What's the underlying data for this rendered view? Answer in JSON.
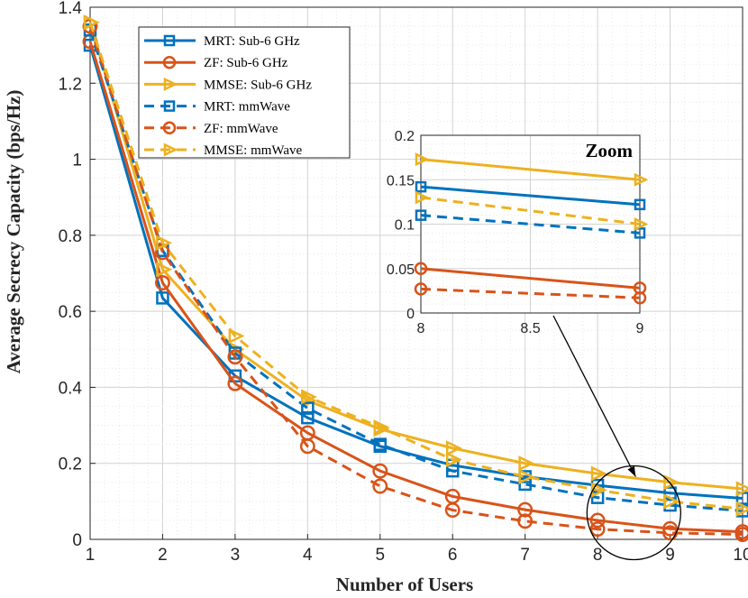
{
  "chart_data": {
    "type": "line",
    "xlabel": "Number of Users",
    "ylabel": "Average Secrecy Capacity (bps/Hz)",
    "xlim": [
      1,
      10
    ],
    "ylim": [
      0,
      1.4
    ],
    "xticks": [
      "1",
      "2",
      "3",
      "4",
      "5",
      "6",
      "7",
      "8",
      "9",
      "10"
    ],
    "yticks": [
      "0",
      "0.2",
      "0.4",
      "0.6",
      "0.8",
      "1",
      "1.2",
      "1.4"
    ],
    "grid": true,
    "legend_position": "top-left",
    "x": [
      1,
      2,
      3,
      4,
      5,
      6,
      7,
      8,
      9,
      10
    ],
    "series": [
      {
        "name": "MRT: Sub-6 GHz",
        "color": "#0072BD",
        "dash": "solid",
        "marker": "square",
        "values": [
          1.3,
          0.635,
          0.43,
          0.32,
          0.245,
          0.195,
          0.165,
          0.142,
          0.122,
          0.108
        ]
      },
      {
        "name": "ZF: Sub-6 GHz",
        "color": "#D95319",
        "dash": "solid",
        "marker": "circle",
        "values": [
          1.31,
          0.675,
          0.41,
          0.28,
          0.18,
          0.113,
          0.078,
          0.05,
          0.028,
          0.02
        ]
      },
      {
        "name": "MMSE: Sub-6 GHz",
        "color": "#EDB120",
        "dash": "solid",
        "marker": "triangle-right",
        "values": [
          1.36,
          0.71,
          0.5,
          0.365,
          0.29,
          0.24,
          0.2,
          0.173,
          0.15,
          0.133
        ]
      },
      {
        "name": "MRT: mmWave",
        "color": "#0072BD",
        "dash": "dashed",
        "marker": "square",
        "values": [
          1.34,
          0.76,
          0.49,
          0.345,
          0.25,
          0.18,
          0.145,
          0.11,
          0.09,
          0.075
        ]
      },
      {
        "name": "ZF: mmWave",
        "color": "#D95319",
        "dash": "dashed",
        "marker": "circle",
        "values": [
          1.35,
          0.755,
          0.48,
          0.245,
          0.14,
          0.077,
          0.048,
          0.027,
          0.017,
          0.013
        ]
      },
      {
        "name": "MMSE: mmWave",
        "color": "#EDB120",
        "dash": "dashed",
        "marker": "triangle-right",
        "values": [
          1.36,
          0.78,
          0.535,
          0.375,
          0.295,
          0.21,
          0.165,
          0.13,
          0.1,
          0.08
        ]
      }
    ],
    "inset": {
      "title": "Zoom",
      "xlim": [
        8,
        9
      ],
      "ylim": [
        0,
        0.2
      ],
      "xticks": [
        8,
        8.5,
        9
      ],
      "xtick_labels": [
        "8",
        "8.5",
        "9"
      ],
      "yticks": [
        0,
        0.05,
        0.1,
        0.15,
        0.2
      ],
      "ytick_labels": [
        "0",
        "0.05",
        "0.1",
        "0.15",
        "0.2"
      ],
      "focus_x": 8.5,
      "focus_y": 0.07
    }
  }
}
